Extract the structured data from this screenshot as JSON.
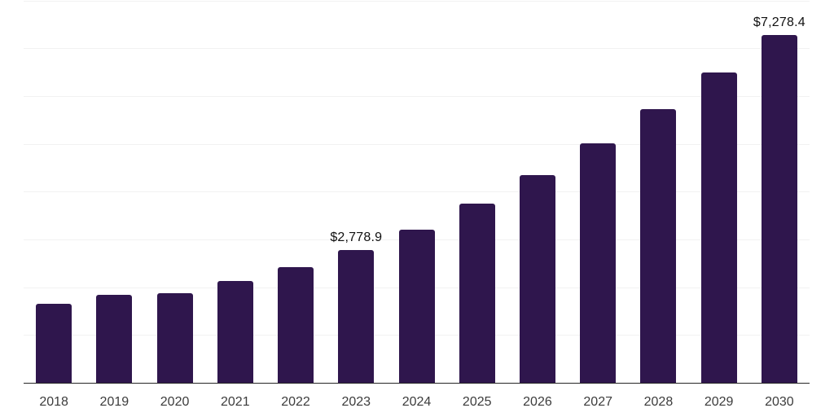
{
  "chart_data": {
    "type": "bar",
    "title": "",
    "xlabel": "",
    "ylabel": "",
    "categories": [
      "2018",
      "2019",
      "2020",
      "2021",
      "2022",
      "2023",
      "2024",
      "2025",
      "2026",
      "2027",
      "2028",
      "2029",
      "2030"
    ],
    "values": [
      1650,
      1840,
      1880,
      2135,
      2420,
      2778.9,
      3210,
      3750,
      4350,
      5015,
      5730,
      6490,
      7278.4
    ],
    "bar_labels": [
      "",
      "",
      "",
      "",
      "",
      "$2,778.9",
      "",
      "",
      "",
      "",
      "",
      "",
      "$7,278.4"
    ],
    "ylim": [
      0,
      8000
    ],
    "gridline_step": 1000,
    "grid": "horizontal-only",
    "legend": "none",
    "y_tick_labels_visible": false,
    "colors": {
      "bar": "#2f164d",
      "gridline": "#f2f2f2",
      "axis_line": "#262626",
      "value_label_text": "#111111",
      "x_tick_text": "#3c3c3c",
      "background": "#ffffff"
    }
  }
}
